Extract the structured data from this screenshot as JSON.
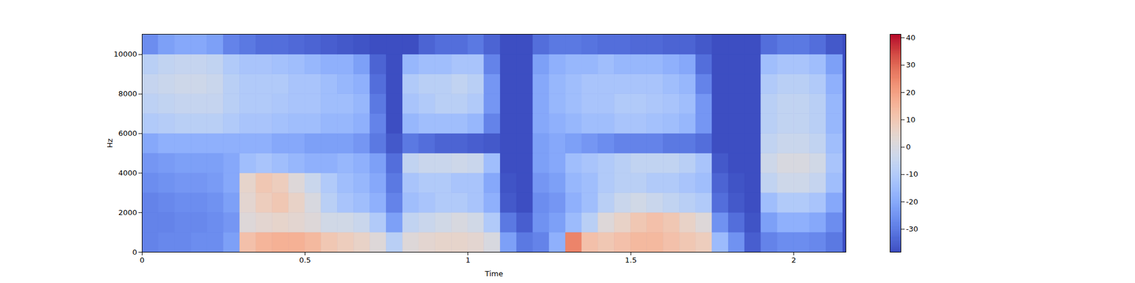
{
  "chart_data": {
    "type": "heatmap",
    "x_label": "Time",
    "y_label": "Hz",
    "xlim": [
      0,
      2.16
    ],
    "ylim": [
      0,
      11025
    ],
    "xticks": [
      0,
      0.5,
      1,
      1.5,
      2
    ],
    "yticks": [
      0,
      2000,
      4000,
      6000,
      8000,
      10000
    ],
    "color": "coolwarm",
    "x_edges": [
      0,
      0.05,
      0.1,
      0.15,
      0.2,
      0.25,
      0.3,
      0.35,
      0.4,
      0.45,
      0.5,
      0.55,
      0.6,
      0.65,
      0.7,
      0.75,
      0.8,
      0.85,
      0.9,
      0.95,
      1,
      1.05,
      1.1,
      1.15,
      1.2,
      1.25,
      1.3,
      1.35,
      1.4,
      1.45,
      1.5,
      1.55,
      1.6,
      1.65,
      1.7,
      1.75,
      1.8,
      1.85,
      1.9,
      1.95,
      2,
      2.05,
      2.1,
      2.15
    ],
    "y_edges": [
      0,
      1000,
      2000,
      3000,
      4000,
      5000,
      6000,
      7000,
      8000,
      9000,
      10000,
      11025
    ],
    "cells": [
      [
        -28,
        -27,
        -27,
        -26,
        -26,
        -22,
        12,
        15,
        16,
        16,
        14,
        10,
        8,
        6,
        2,
        -8,
        2,
        4,
        5,
        5,
        4,
        0,
        -22,
        -30,
        -28,
        -18,
        25,
        12,
        10,
        12,
        14,
        14,
        12,
        10,
        8,
        -15,
        -25,
        -35,
        -28,
        -26,
        -26,
        -27,
        -30
      ],
      [
        -28,
        -28,
        -27,
        -27,
        -26,
        -24,
        2,
        4,
        5,
        4,
        2,
        -2,
        -2,
        -4,
        -10,
        -22,
        -6,
        -4,
        -2,
        0,
        -2,
        -10,
        -30,
        -35,
        -25,
        -22,
        -15,
        -8,
        2,
        6,
        10,
        12,
        10,
        6,
        2,
        -25,
        -32,
        -37,
        -22,
        -18,
        -18,
        -20,
        -26
      ],
      [
        -28,
        -27,
        -26,
        -26,
        -25,
        -22,
        4,
        8,
        10,
        6,
        0,
        -8,
        -12,
        -14,
        -18,
        -28,
        -14,
        -12,
        -10,
        -10,
        -12,
        -18,
        -36,
        -38,
        -26,
        -24,
        -18,
        -14,
        -8,
        -4,
        -2,
        -4,
        -6,
        -8,
        -10,
        -32,
        -36,
        -38,
        -14,
        -10,
        -10,
        -12,
        -20
      ],
      [
        -26,
        -25,
        -24,
        -24,
        -23,
        -20,
        5,
        10,
        8,
        2,
        -4,
        -10,
        -14,
        -16,
        -20,
        -30,
        -12,
        -10,
        -10,
        -12,
        -12,
        -20,
        -37,
        -38,
        -24,
        -22,
        -16,
        -14,
        -10,
        -8,
        -8,
        -10,
        -10,
        -12,
        -14,
        -34,
        -37,
        -38,
        -6,
        -3,
        -3,
        -5,
        -14
      ],
      [
        -24,
        -23,
        -22,
        -22,
        -22,
        -20,
        -14,
        -12,
        -14,
        -16,
        -18,
        -18,
        -16,
        -18,
        -22,
        -32,
        -6,
        -4,
        -4,
        -3,
        -4,
        -14,
        -38,
        -38,
        -22,
        -20,
        -14,
        -12,
        -10,
        -8,
        -6,
        -6,
        -6,
        -8,
        -12,
        -36,
        -38,
        -38,
        -3,
        0,
        0,
        -2,
        -12
      ],
      [
        -20,
        -18,
        -18,
        -18,
        -18,
        -18,
        -18,
        -18,
        -20,
        -20,
        -22,
        -22,
        -22,
        -24,
        -30,
        -36,
        -30,
        -32,
        -34,
        -34,
        -35,
        -36,
        -38,
        -38,
        -22,
        -20,
        -22,
        -24,
        -26,
        -28,
        -28,
        -28,
        -30,
        -30,
        -32,
        -38,
        -38,
        -38,
        -6,
        -4,
        -4,
        -6,
        -14
      ],
      [
        -10,
        -9,
        -8,
        -8,
        -8,
        -10,
        -12,
        -12,
        -13,
        -14,
        -14,
        -16,
        -16,
        -18,
        -28,
        -38,
        -16,
        -14,
        -14,
        -14,
        -16,
        -28,
        -38,
        -38,
        -20,
        -18,
        -16,
        -14,
        -14,
        -12,
        -12,
        -13,
        -14,
        -16,
        -24,
        -38,
        -38,
        -38,
        -8,
        -6,
        -6,
        -8,
        -16
      ],
      [
        -7,
        -6,
        -5,
        -5,
        -5,
        -8,
        -10,
        -10,
        -11,
        -12,
        -12,
        -14,
        -14,
        -16,
        -30,
        -38,
        -12,
        -10,
        -8,
        -8,
        -10,
        -24,
        -38,
        -38,
        -20,
        -16,
        -14,
        -12,
        -12,
        -10,
        -10,
        -11,
        -12,
        -14,
        -24,
        -38,
        -38,
        -38,
        -8,
        -6,
        -6,
        -8,
        -16
      ],
      [
        -5,
        -4,
        -3,
        -3,
        -4,
        -8,
        -10,
        -10,
        -10,
        -12,
        -12,
        -14,
        -16,
        -18,
        -32,
        -38,
        -10,
        -8,
        -8,
        -6,
        -8,
        -24,
        -38,
        -38,
        -20,
        -16,
        -14,
        -12,
        -12,
        -12,
        -12,
        -12,
        -14,
        -16,
        -28,
        -38,
        -38,
        -38,
        -10,
        -8,
        -8,
        -10,
        -18
      ],
      [
        -8,
        -6,
        -5,
        -5,
        -6,
        -10,
        -12,
        -12,
        -13,
        -14,
        -16,
        -18,
        -18,
        -22,
        -34,
        -38,
        -16,
        -14,
        -14,
        -12,
        -12,
        -28,
        -38,
        -38,
        -22,
        -18,
        -16,
        -16,
        -14,
        -16,
        -16,
        -16,
        -18,
        -20,
        -32,
        -38,
        -38,
        -38,
        -14,
        -12,
        -12,
        -14,
        -22
      ],
      [
        -26,
        -22,
        -20,
        -20,
        -22,
        -28,
        -30,
        -32,
        -32,
        -33,
        -34,
        -35,
        -36,
        -37,
        -38,
        -38,
        -38,
        -34,
        -32,
        -32,
        -30,
        -34,
        -38,
        -38,
        -32,
        -30,
        -30,
        -31,
        -32,
        -32,
        -33,
        -33,
        -34,
        -34,
        -36,
        -38,
        -38,
        -38,
        -32,
        -30,
        -30,
        -32,
        -36
      ]
    ],
    "colorbar": {
      "range": [
        -38.4,
        41.3
      ],
      "ticks": [
        -30,
        -20,
        -10,
        0,
        10,
        20,
        30,
        40
      ]
    }
  }
}
